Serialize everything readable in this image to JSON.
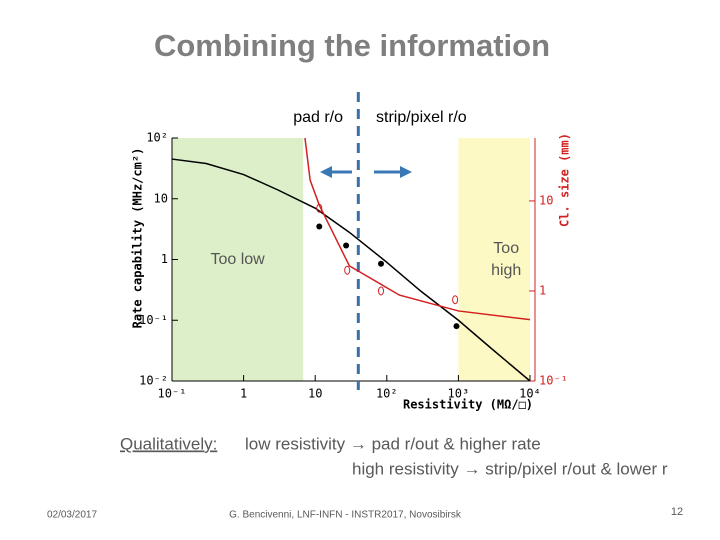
{
  "title": "Combining  the information",
  "pad_label": "pad r/o",
  "strip_label": "strip/pixel r/o",
  "qualifier": "Qualitatively:",
  "lines": [
    "low resistivity → pad r/out & higher rate",
    "high resistivity → strip/pixel r/out & lower r"
  ],
  "footer": {
    "date": "02/03/2017",
    "credit": "G. Bencivenni, LNF-INFN - INSTR2017,  Novosibirsk",
    "page": 12
  },
  "chart_data": {
    "type": "line",
    "xlabel": "Resistivity (MΩ/□)",
    "ylabel": "Rate capability (MHz/cm²)",
    "y2label": "Cl. size (mm)",
    "xscale": "log",
    "yscale": "log",
    "y2scale": "log",
    "xlim": [
      0.1,
      10000
    ],
    "ylim": [
      0.01,
      100
    ],
    "y2lim": [
      0.1,
      50
    ],
    "xticks": [
      {
        "value": 0.1,
        "label": "10⁻¹"
      },
      1,
      10,
      {
        "value": 100,
        "label": "10²"
      },
      {
        "value": 1000,
        "label": "10³"
      },
      {
        "value": 10000,
        "label": "10⁴"
      }
    ],
    "yticks": [
      {
        "value": 100,
        "label": "10²"
      },
      10,
      1,
      {
        "value": 0.1,
        "label": "10⁻¹"
      },
      {
        "value": 0.01,
        "label": "10⁻²"
      }
    ],
    "y2ticks": [
      10,
      1,
      {
        "value": 0.1,
        "label": "10⁻¹"
      }
    ],
    "y2color": "#d42020",
    "regions": [
      {
        "label": "Too low",
        "x": [
          0.1,
          6.8
        ],
        "color": "#dcefc9"
      },
      {
        "label": "Too high",
        "x": [
          1000,
          10000
        ],
        "color": "#fdf9c4"
      }
    ],
    "divider_x": 40,
    "series": [
      {
        "color": "#000000",
        "marker": "line",
        "x": [
          0.1,
          0.3,
          1,
          3,
          10,
          30,
          100,
          300,
          1000,
          3000,
          10000
        ],
        "values": [
          45,
          38,
          25,
          14,
          7,
          2.8,
          0.9,
          0.3,
          0.1,
          0.033,
          0.01
        ]
      },
      {
        "color": "#d42020",
        "marker": "line",
        "axis": "y2",
        "x": [
          7.2,
          8.5,
          11.4,
          30,
          150,
          1000,
          10000
        ],
        "values": [
          50,
          17,
          9,
          1.9,
          0.9,
          0.6,
          0.48
        ]
      },
      {
        "color": "#000000",
        "marker": "dot",
        "x": [
          11.4,
          27,
          83,
          940
        ],
        "values": [
          3.5,
          1.7,
          0.85,
          0.08
        ]
      },
      {
        "color": "#d42020",
        "marker": "circle",
        "axis": "y2",
        "x": [
          11.4,
          28,
          83,
          900
        ],
        "values": [
          8.3,
          1.7,
          1.0,
          0.8
        ]
      }
    ]
  }
}
